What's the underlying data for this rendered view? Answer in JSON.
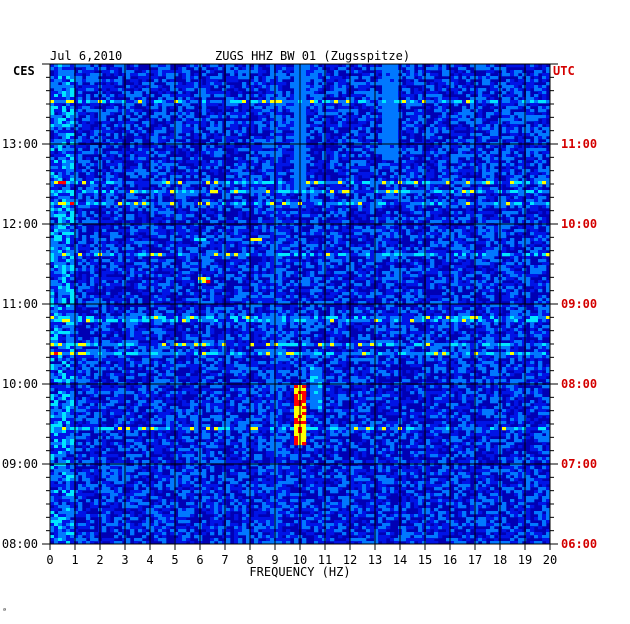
{
  "header": {
    "date": "Jul 6,2010",
    "station": "ZUGS HHZ BW 01 (Zugsspitze)",
    "left_zone": "CES",
    "right_zone": "UTC"
  },
  "footer_mark": "ᵃ",
  "colors": {
    "background": "#0000b4",
    "low": "#0014e6",
    "mid_low": "#0078ff",
    "mid": "#00e6ff",
    "mid_high": "#ffff00",
    "high": "#ff0000",
    "right_axis": "#d40000",
    "grid": "#000000"
  },
  "chart_data": {
    "type": "heatmap",
    "title": "ZUGS HHZ BW 01 (Zugsspitze)",
    "xlabel": "FREQUENCY (HZ)",
    "ylabel": "",
    "xlim": [
      0,
      20
    ],
    "x_ticks": [
      "0",
      "1",
      "2",
      "3",
      "4",
      "5",
      "6",
      "7",
      "8",
      "9",
      "10",
      "11",
      "12",
      "13",
      "14",
      "15",
      "16",
      "17",
      "18",
      "19",
      "20"
    ],
    "y_ticks_left": [
      "08:00",
      "09:00",
      "10:00",
      "11:00",
      "12:00",
      "13:00"
    ],
    "y_ticks_right": [
      "06:00",
      "07:00",
      "08:00",
      "09:00",
      "10:00",
      "11:00"
    ],
    "time_range_local_hours": [
      8.0,
      14.0
    ],
    "features": [
      {
        "freq_hz": 10.0,
        "from_h": 9.25,
        "to_h": 10.0,
        "level": 1.0
      },
      {
        "freq_hz": 10.6,
        "from_h": 9.7,
        "to_h": 10.2,
        "level": 0.6
      },
      {
        "freq_hz": 6.0,
        "from_h": 11.78,
        "to_h": 11.82,
        "level": 0.8
      },
      {
        "freq_hz": 8.3,
        "from_h": 11.78,
        "to_h": 11.82,
        "level": 0.9
      },
      {
        "freq_hz": 6.1,
        "from_h": 11.28,
        "to_h": 11.32,
        "level": 0.9
      },
      {
        "freq_hz": 9.0,
        "from_h": 8.0,
        "to_h": 14.0,
        "level": 0.4
      },
      {
        "freq_hz": 13.6,
        "from_h": 12.8,
        "to_h": 14.0,
        "level": 0.5
      },
      {
        "freq_hz": 10.0,
        "from_h": 12.4,
        "to_h": 14.0,
        "level": 0.55
      }
    ]
  }
}
